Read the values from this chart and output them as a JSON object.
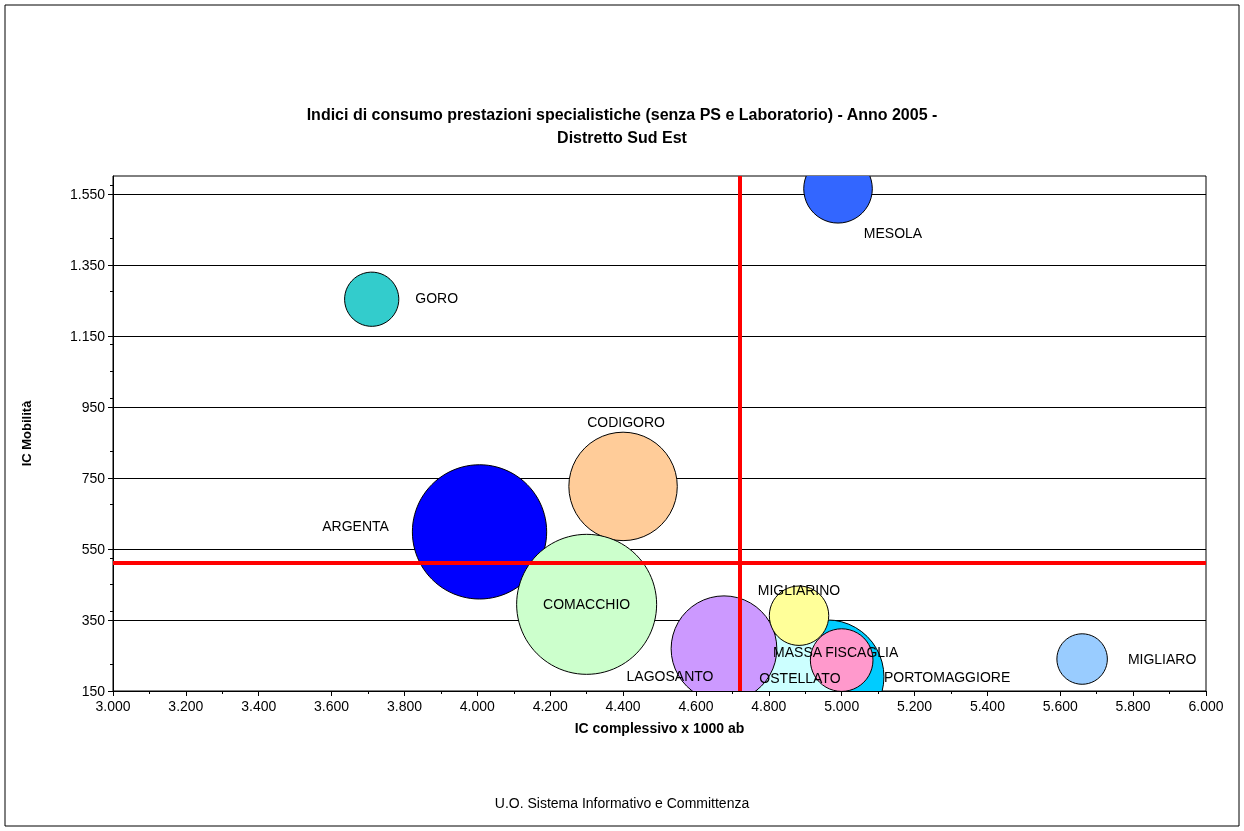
{
  "chart_data": {
    "type": "bubble",
    "title": "Indici di consumo prestazioni specialistiche (senza PS e Laboratorio) - Anno 2005 -\nDistretto Sud Est",
    "xlabel": "IC complessivo x 1000 ab",
    "ylabel": "IC Mobilità",
    "xlim": [
      3000,
      6000
    ],
    "xticks": [
      {
        "value": 3000,
        "label": "3.000"
      },
      {
        "value": 3200,
        "label": "3.200"
      },
      {
        "value": 3400,
        "label": "3.400"
      },
      {
        "value": 3600,
        "label": "3.600"
      },
      {
        "value": 3800,
        "label": "3.800"
      },
      {
        "value": 4000,
        "label": "4.000"
      },
      {
        "value": 4200,
        "label": "4.200"
      },
      {
        "value": 4400,
        "label": "4.400"
      },
      {
        "value": 4600,
        "label": "4.600"
      },
      {
        "value": 4800,
        "label": "4.800"
      },
      {
        "value": 5000,
        "label": "5.000"
      },
      {
        "value": 5200,
        "label": "5.200"
      },
      {
        "value": 5400,
        "label": "5.400"
      },
      {
        "value": 5600,
        "label": "5.600"
      },
      {
        "value": 5800,
        "label": "5.800"
      },
      {
        "value": 6000,
        "label": "6.000"
      }
    ],
    "ylim": [
      150,
      1600
    ],
    "yticks": [
      150,
      350,
      550,
      750,
      950,
      {
        "value": 1150,
        "label": "1.150"
      },
      {
        "value": 1350,
        "label": "1.350"
      },
      {
        "value": 1550,
        "label": "1.550"
      }
    ],
    "grid": "y",
    "series": [
      {
        "name": "MESOLA",
        "color": "#3366ff",
        "x": [
          4990
        ],
        "values": [
          1564
        ],
        "sizes": [
          0.24
        ]
      },
      {
        "name": "GORO",
        "color": "#33cccc",
        "x": [
          3710
        ],
        "values": [
          1256
        ],
        "sizes": [
          0.15
        ]
      },
      {
        "name": "CODIGORO",
        "color": "#ffcc99",
        "x": [
          4400
        ],
        "values": [
          726
        ],
        "sizes": [
          0.6
        ]
      },
      {
        "name": "ARGENTA",
        "color": "#0000ff",
        "x": [
          4006
        ],
        "values": [
          598
        ],
        "sizes": [
          0.92
        ]
      },
      {
        "name": "COMACCHIO",
        "color": "#ccffcc",
        "x": [
          4300
        ],
        "values": [
          394
        ],
        "sizes": [
          1
        ]
      },
      {
        "name": "PORTOMAGGIORE",
        "color": "#00ccff",
        "x": [
          4960
        ],
        "values": [
          190
        ],
        "sizes": [
          0.66
        ]
      },
      {
        "name": "OSTELLATO",
        "color": "#ccffff",
        "x": [
          4880
        ],
        "values": [
          200
        ],
        "sizes": [
          0.41
        ]
      },
      {
        "name": "LAGOSANTO",
        "color": "#cc99ff",
        "x": [
          4677
        ],
        "values": [
          269
        ],
        "sizes": [
          0.57
        ]
      },
      {
        "name": "MIGLIARINO",
        "color": "#ffff99",
        "x": [
          4883
        ],
        "values": [
          362
        ],
        "sizes": [
          0.18
        ]
      },
      {
        "name": "MASSA FISCAGLIA",
        "color": "#ff99cc",
        "x": [
          5000
        ],
        "values": [
          237
        ],
        "sizes": [
          0.2
        ]
      },
      {
        "name": "MIGLIARO",
        "color": "#99ccff",
        "x": [
          5660
        ],
        "values": [
          240
        ],
        "sizes": [
          0.13
        ]
      }
    ],
    "ref_lines": [
      {
        "axis": "x",
        "value": 4720,
        "color": "#ff0000"
      },
      {
        "axis": "y",
        "value": 510,
        "color": "#ff0000"
      }
    ],
    "annotations": [
      "U.O. Sistema Informativo e Committenza"
    ]
  }
}
